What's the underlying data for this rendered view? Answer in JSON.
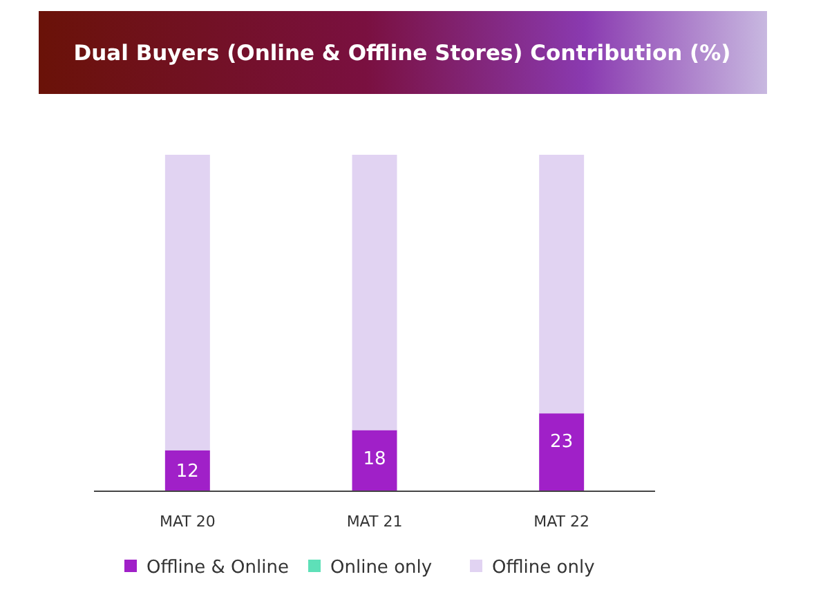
{
  "chart_data": {
    "type": "bar",
    "title": "Dual Buyers (Online & Offline Stores) Contribution (%)",
    "categories": [
      "MAT 20",
      "MAT 21",
      "MAT 22"
    ],
    "stacked": true,
    "legend": "bottom",
    "series": [
      {
        "name": "Offline & Online",
        "color": "#a020c8",
        "values": [
          12,
          18,
          23
        ],
        "value_labels": [
          "12",
          "18",
          "23"
        ]
      },
      {
        "name": "Online only",
        "color": "#5ee0b8",
        "values": [
          0,
          0,
          0
        ]
      },
      {
        "name": "Offline only",
        "color": "#e1d3f2",
        "values": [
          88,
          82,
          77
        ]
      }
    ]
  }
}
